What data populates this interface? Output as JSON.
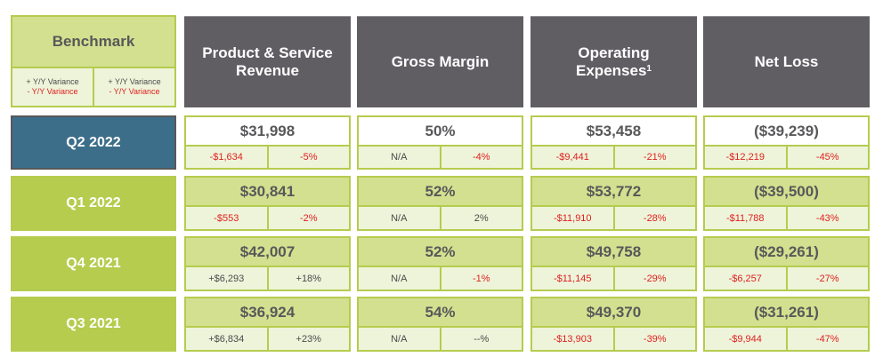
{
  "benchmark": {
    "title": "Benchmark",
    "legend": [
      {
        "positive": "+ Y/Y Variance",
        "negative": "- Y/Y Variance"
      },
      {
        "positive": "+ Y/Y Variance",
        "negative": "- Y/Y Variance"
      }
    ]
  },
  "columns": [
    {
      "label": "Product & Service Revenue",
      "line1": "Product & Service",
      "line2": "Revenue"
    },
    {
      "label": "Gross Margin",
      "line1": "Gross Margin",
      "line2": ""
    },
    {
      "label": "Operating Expenses",
      "line1": "Operating",
      "line2": "Expenses",
      "footnote": "1"
    },
    {
      "label": "Net Loss",
      "line1": "Net Loss",
      "line2": ""
    }
  ],
  "rows": [
    {
      "period": "Q2 2022",
      "current": true,
      "cells": [
        {
          "value": "$31,998",
          "var_abs": "-$1,634",
          "var_pct": "-5%",
          "abs_neg": true,
          "pct_neg": true
        },
        {
          "value": "50%",
          "var_abs": "N/A",
          "var_pct": "-4%",
          "abs_neg": false,
          "pct_neg": true
        },
        {
          "value": "$53,458",
          "var_abs": "-$9,441",
          "var_pct": "-21%",
          "abs_neg": true,
          "pct_neg": true
        },
        {
          "value": "($39,239)",
          "var_abs": "-$12,219",
          "var_pct": "-45%",
          "abs_neg": true,
          "pct_neg": true
        }
      ]
    },
    {
      "period": "Q1 2022",
      "current": false,
      "cells": [
        {
          "value": "$30,841",
          "var_abs": "-$553",
          "var_pct": "-2%",
          "abs_neg": true,
          "pct_neg": true
        },
        {
          "value": "52%",
          "var_abs": "N/A",
          "var_pct": "2%",
          "abs_neg": false,
          "pct_neg": false
        },
        {
          "value": "$53,772",
          "var_abs": "-$11,910",
          "var_pct": "-28%",
          "abs_neg": true,
          "pct_neg": true
        },
        {
          "value": "($39,500)",
          "var_abs": "-$11,788",
          "var_pct": "-43%",
          "abs_neg": true,
          "pct_neg": true
        }
      ]
    },
    {
      "period": "Q4 2021",
      "current": false,
      "cells": [
        {
          "value": "$42,007",
          "var_abs": "+$6,293",
          "var_pct": "+18%",
          "abs_neg": false,
          "pct_neg": false
        },
        {
          "value": "52%",
          "var_abs": "N/A",
          "var_pct": "-1%",
          "abs_neg": false,
          "pct_neg": true
        },
        {
          "value": "$49,758",
          "var_abs": "-$11,145",
          "var_pct": "-29%",
          "abs_neg": true,
          "pct_neg": true
        },
        {
          "value": "($29,261)",
          "var_abs": "-$6,257",
          "var_pct": "-27%",
          "abs_neg": true,
          "pct_neg": true
        }
      ]
    },
    {
      "period": "Q3 2021",
      "current": false,
      "cells": [
        {
          "value": "$36,924",
          "var_abs": "+$6,834",
          "var_pct": "+23%",
          "abs_neg": false,
          "pct_neg": false
        },
        {
          "value": "54%",
          "var_abs": "N/A",
          "var_pct": "--%",
          "abs_neg": false,
          "pct_neg": false
        },
        {
          "value": "$49,370",
          "var_abs": "-$13,903",
          "var_pct": "-39%",
          "abs_neg": true,
          "pct_neg": true
        },
        {
          "value": "($31,261)",
          "var_abs": "-$9,944",
          "var_pct": "-47%",
          "abs_neg": true,
          "pct_neg": true
        }
      ]
    }
  ],
  "colors": {
    "header_bg": "#605e63",
    "current_period_bg": "#3c6e8a",
    "period_bg": "#b5cc4e",
    "cell_main_bg": "#d3e08f",
    "cell_sub_bg": "#eef4da",
    "negative_text": "#e02020"
  }
}
